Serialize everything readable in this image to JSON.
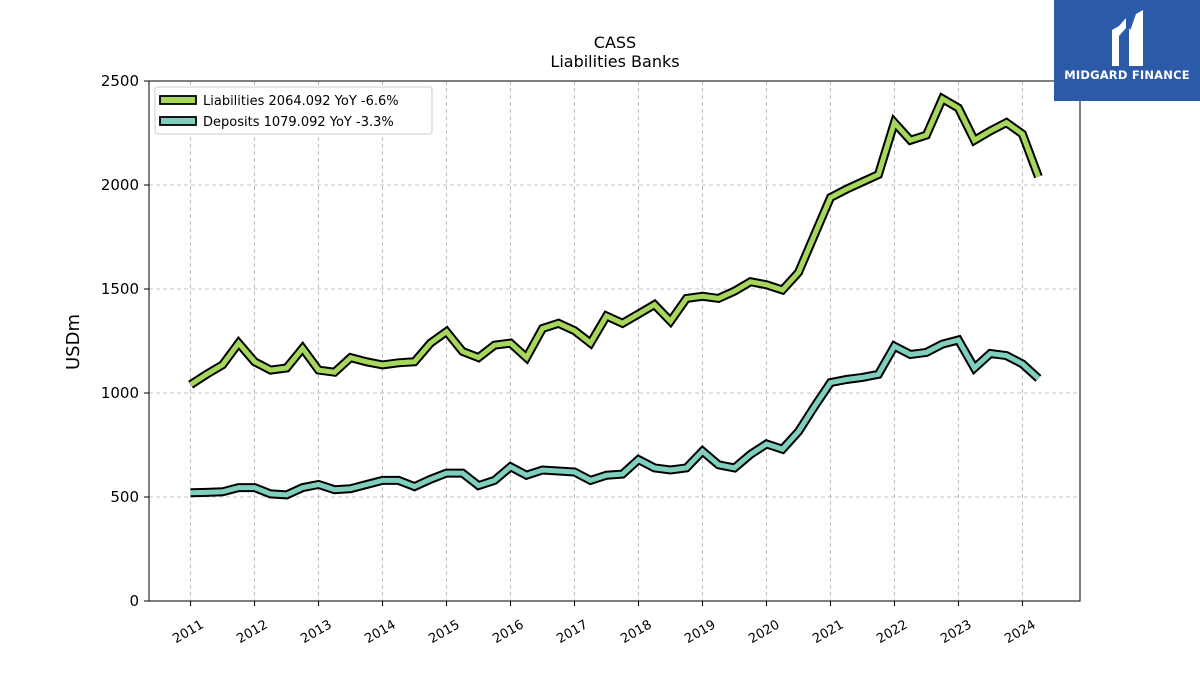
{
  "chart_data": {
    "type": "line",
    "title": "CASS",
    "subtitle": "Liabilities Banks",
    "xlabel": "",
    "ylabel": "USDm",
    "ylim": [
      0,
      2500
    ],
    "yticks": [
      0,
      500,
      1000,
      1500,
      2000,
      2500
    ],
    "xlim": [
      2010.35,
      2024.9
    ],
    "xticks": [
      2011,
      2012,
      2013,
      2014,
      2015,
      2016,
      2017,
      2018,
      2019,
      2020,
      2021,
      2022,
      2023,
      2024
    ],
    "xtick_labels": [
      "2011",
      "2012",
      "2013",
      "2014",
      "2015",
      "2016",
      "2017",
      "2018",
      "2019",
      "2020",
      "2021",
      "2022",
      "2023",
      "2024"
    ],
    "grid": true,
    "legend_position": "top-left",
    "x": [
      2011.0,
      2011.25,
      2011.5,
      2011.75,
      2012.0,
      2012.25,
      2012.5,
      2012.75,
      2013.0,
      2013.25,
      2013.5,
      2013.75,
      2014.0,
      2014.25,
      2014.5,
      2014.75,
      2015.0,
      2015.25,
      2015.5,
      2015.75,
      2016.0,
      2016.25,
      2016.5,
      2016.75,
      2017.0,
      2017.25,
      2017.5,
      2017.75,
      2018.0,
      2018.25,
      2018.5,
      2018.75,
      2019.0,
      2019.25,
      2019.5,
      2019.75,
      2020.0,
      2020.25,
      2020.5,
      2020.75,
      2021.0,
      2021.25,
      2021.5,
      2021.75,
      2022.0,
      2022.25,
      2022.5,
      2022.75,
      2023.0,
      2023.25,
      2023.5,
      2023.75,
      2024.0,
      2024.25
    ],
    "series": [
      {
        "name": "Liabilities",
        "legend_label": "Liabilities  2064.092 YoY -6.6%",
        "color": "#a6d65a",
        "values": [
          1040,
          1090,
          1135,
          1240,
          1150,
          1110,
          1120,
          1215,
          1110,
          1100,
          1170,
          1150,
          1135,
          1145,
          1150,
          1240,
          1295,
          1200,
          1170,
          1230,
          1240,
          1170,
          1310,
          1335,
          1300,
          1240,
          1370,
          1335,
          1380,
          1425,
          1345,
          1455,
          1465,
          1455,
          1490,
          1535,
          1520,
          1495,
          1580,
          1760,
          1940,
          1980,
          2015,
          2050,
          2300,
          2215,
          2240,
          2415,
          2370,
          2215,
          2260,
          2300,
          2245,
          2040
        ]
      },
      {
        "name": "Deposits",
        "legend_label": "Deposits  1079.092 YoY -3.3%",
        "color": "#7fcfbf",
        "values": [
          520,
          522,
          525,
          545,
          545,
          515,
          510,
          545,
          560,
          535,
          540,
          560,
          580,
          580,
          550,
          585,
          615,
          615,
          555,
          580,
          645,
          605,
          630,
          625,
          620,
          580,
          605,
          610,
          680,
          640,
          630,
          640,
          720,
          655,
          640,
          705,
          755,
          730,
          815,
          935,
          1050,
          1065,
          1075,
          1090,
          1225,
          1185,
          1195,
          1235,
          1255,
          1120,
          1190,
          1180,
          1140,
          1070
        ]
      }
    ]
  },
  "logo": {
    "text": "MIDGARD FINANCE",
    "color": "#2b5aa8"
  }
}
